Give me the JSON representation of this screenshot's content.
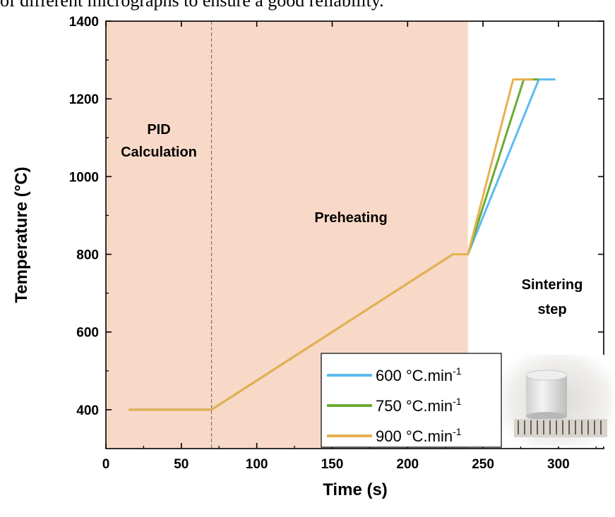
{
  "caption_fragment": "of different micrographs to ensure a good reliability.",
  "colors": {
    "shade": "#f8d9c8",
    "series_600": "#5bbcf0",
    "series_750": "#6aab35",
    "series_900": "#e8b050"
  },
  "chart_data": {
    "type": "line",
    "xlabel": "Time (s)",
    "ylabel": "Temperature (°C)",
    "xlim": [
      0,
      330
    ],
    "ylim": [
      300,
      1400
    ],
    "xticks": [
      0,
      50,
      100,
      150,
      200,
      250,
      300
    ],
    "yticks": [
      400,
      600,
      800,
      1000,
      1200,
      1400
    ],
    "grid": false,
    "legend_position": "bottom-right",
    "shaded_region": [
      0,
      240
    ],
    "divider_x": 70,
    "annotations": {
      "pid_line1": "PID",
      "pid_line2": "Calculation",
      "preheating": "Preheating",
      "sintering_line1": "Sintering",
      "sintering_line2": "step"
    },
    "series": [
      {
        "name": "600 °C.min-1",
        "label_main": "600 °C.min",
        "label_sup": "-1",
        "x": [
          15,
          70,
          230,
          240,
          287,
          298
        ],
        "y": [
          400,
          400,
          800,
          800,
          1250,
          1250
        ]
      },
      {
        "name": "750 °C.min-1",
        "label_main": "750 °C.min",
        "label_sup": "-1",
        "x": [
          15,
          70,
          230,
          240,
          277,
          287
        ],
        "y": [
          400,
          400,
          800,
          800,
          1250,
          1250
        ]
      },
      {
        "name": "900 °C.min-1",
        "label_main": "900 °C.min",
        "label_sup": "-1",
        "x": [
          15,
          70,
          230,
          240,
          270,
          283
        ],
        "y": [
          400,
          400,
          800,
          800,
          1250,
          1250
        ]
      }
    ]
  }
}
